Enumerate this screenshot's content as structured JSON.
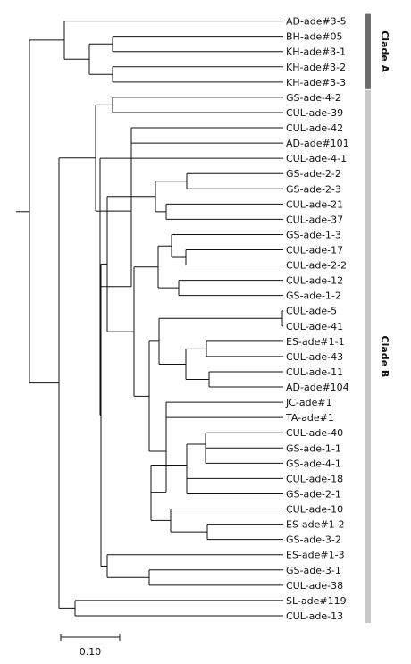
{
  "leaves": [
    "AD-ade#3-5",
    "BH-ade#05",
    "KH-ade#3-1",
    "KH-ade#3-2",
    "KH-ade#3-3",
    "GS-ade-4-2",
    "CUL-ade-39",
    "CUL-ade-42",
    "AD-ade#101",
    "CUL-ade-4-1",
    "GS-ade-2-2",
    "GS-ade-2-3",
    "CUL-ade-21",
    "CUL-ade-37",
    "GS-ade-1-3",
    "CUL-ade-17",
    "CUL-ade-2-2",
    "CUL-ade-12",
    "GS-ade-1-2",
    "CUL-ade-5",
    "CUL-ade-41",
    "ES-ade#1-1",
    "CUL-ade-43",
    "CUL-ade-11",
    "AD-ade#104",
    "JC-ade#1",
    "TA-ade#1",
    "CUL-ade-40",
    "GS-ade-1-1",
    "GS-ade-4-1",
    "CUL-ade-18",
    "GS-ade-2-1",
    "CUL-ade-10",
    "ES-ade#1-2",
    "GS-ade-3-2",
    "ES-ade#1-3",
    "GS-ade-3-1",
    "CUL-ade-38",
    "SL-ade#119",
    "CUL-ade-13"
  ],
  "clades": [
    {
      "label": "Clade A",
      "first": 0,
      "last": 4,
      "color": "#6e6e6e"
    },
    {
      "label": "Clade B",
      "first": 5,
      "last": 39,
      "color": "#c8c8c8"
    }
  ],
  "scale": {
    "label": "0.10"
  },
  "colors": {
    "branch": "#111111",
    "text": "#111111"
  }
}
